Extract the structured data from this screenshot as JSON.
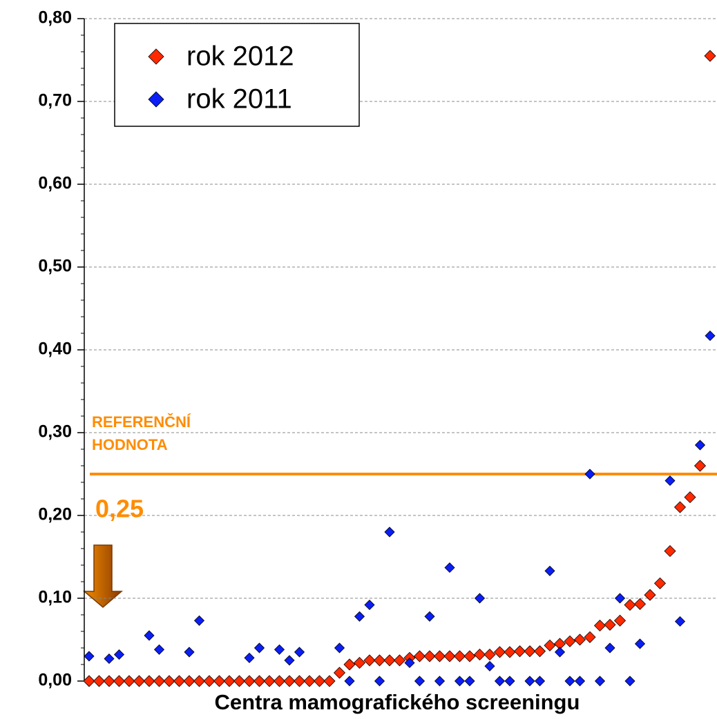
{
  "chart_data": {
    "type": "scatter",
    "xlabel": "Centra mamografického screeningu",
    "categories": [
      null,
      null,
      null,
      null,
      null,
      null,
      null,
      null,
      null,
      null,
      null,
      null,
      null,
      null,
      null,
      null,
      null,
      null,
      null,
      null,
      null,
      null,
      null,
      null,
      null,
      null,
      null,
      null,
      null,
      null,
      null,
      null,
      null,
      null,
      null,
      null,
      null,
      null,
      null,
      null,
      null,
      null,
      null,
      null,
      null,
      null,
      null,
      null,
      null,
      null,
      null,
      null,
      null,
      null,
      null,
      null,
      null,
      null,
      null,
      null,
      null,
      null,
      null
    ],
    "series": [
      {
        "name": "rok 2012",
        "color": "#ff2a00",
        "values": [
          0,
          0,
          0,
          0,
          0,
          0,
          0,
          0,
          0,
          0,
          0,
          0,
          0,
          0,
          0,
          0,
          0,
          0,
          0,
          0,
          0,
          0,
          0,
          0,
          0,
          0.01,
          0.02,
          0.022,
          0.025,
          0.025,
          0.025,
          0.025,
          0.028,
          0.03,
          0.03,
          0.03,
          0.03,
          0.03,
          0.03,
          0.032,
          0.032,
          0.035,
          0.035,
          0.036,
          0.036,
          0.036,
          0.043,
          0.045,
          0.048,
          0.05,
          0.053,
          0.067,
          0.068,
          0.073,
          0.092,
          0.093,
          0.104,
          0.118,
          0.157,
          0.21,
          0.222,
          0.26,
          0.755
        ]
      },
      {
        "name": "rok 2011",
        "color": "#0a1ef5",
        "values": [
          0.03,
          null,
          0.027,
          0.032,
          null,
          null,
          0.055,
          0.038,
          null,
          null,
          0.035,
          0.073,
          null,
          null,
          null,
          null,
          0.028,
          0.04,
          null,
          0.038,
          0.025,
          0.035,
          null,
          null,
          null,
          0.04,
          0,
          0.078,
          0.092,
          0,
          0.18,
          null,
          0.022,
          0,
          0.078,
          0,
          0.137,
          0,
          0,
          0.1,
          0.018,
          0,
          0,
          null,
          0,
          0,
          0.133,
          0.035,
          0,
          0,
          0.25,
          0,
          0.04,
          0.1,
          0,
          0.045,
          null,
          null,
          0.242,
          0.072,
          null,
          0.285,
          0.417
        ]
      }
    ],
    "ylim": [
      0,
      0.8
    ],
    "yticks": [
      {
        "value": 0,
        "label": "0,00"
      },
      {
        "value": 0.1,
        "label": "0,10"
      },
      {
        "value": 0.2,
        "label": "0,20"
      },
      {
        "value": 0.3,
        "label": "0,30"
      },
      {
        "value": 0.4,
        "label": "0,40"
      },
      {
        "value": 0.5,
        "label": "0,50"
      },
      {
        "value": 0.6,
        "label": "0,60"
      },
      {
        "value": 0.7,
        "label": "0,70"
      },
      {
        "value": 0.8,
        "label": "0,80"
      }
    ],
    "grid": true,
    "legend": "upper left",
    "reference_line": {
      "value": 0.25,
      "label": "0,25",
      "color": "#ff8c00"
    },
    "annotation": [
      "REFERENČNÍ",
      "HODNOTA"
    ]
  }
}
